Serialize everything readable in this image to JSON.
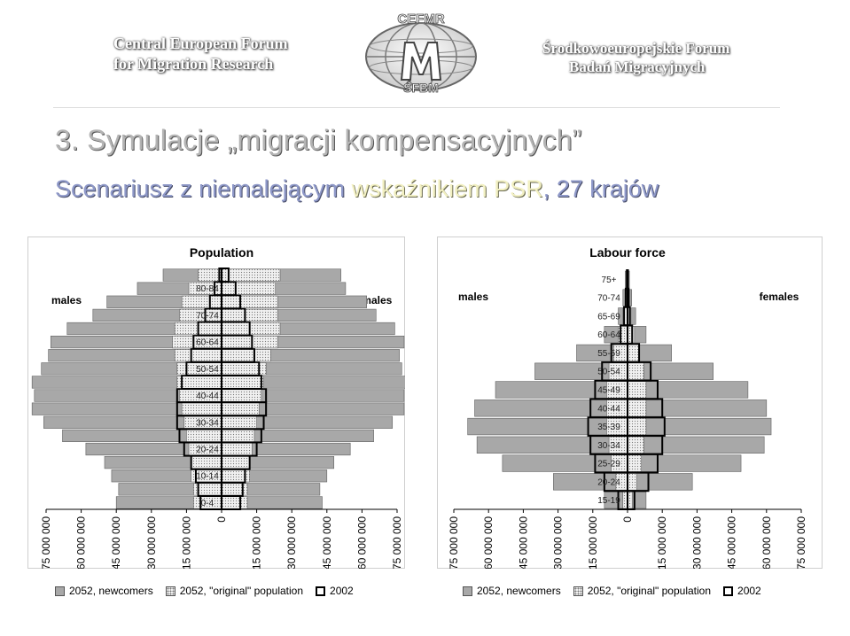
{
  "header": {
    "org_left_line1": "Central European Forum",
    "org_left_line2": "for Migration Research",
    "org_right_line1": "Środkowoeuropejskie Forum",
    "org_right_line2": "Badań Migracyjnych",
    "logo_top": "CEFMR",
    "logo_bottom": "ŚFBM"
  },
  "title": "3. Symulacje „migracji kompensacyjnych”",
  "subtitle": {
    "part1": "Scenariusz z niemalejącym ",
    "part2": "wskaźnikiem PSR",
    "part3": ", 27 krajów"
  },
  "colors": {
    "newcomers": "#a8a8a8",
    "original": "#f0f0f0",
    "y2002": "#000000",
    "title": "#b4b4b4",
    "subtitle": "#8e98c8",
    "highlight": "#f2f0c2"
  },
  "chart_data": [
    {
      "type": "bar",
      "orientation": "horizontal-pyramid",
      "title": "Population",
      "left_label": "males",
      "right_label": "females",
      "age_groups": [
        "0-4",
        "5-9",
        "10-14",
        "15-19",
        "20-24",
        "25-29",
        "30-34",
        "35-39",
        "40-44",
        "45-49",
        "50-54",
        "55-59",
        "60-64",
        "65-69",
        "70-74",
        "75-79",
        "80-84",
        "85+"
      ],
      "y_tick_labels": [
        "0-4",
        "10-14",
        "20-24",
        "30-34",
        "40-44",
        "50-54",
        "60-64",
        "70-74",
        "80-84"
      ],
      "x_tick_labels": [
        "75 000 000",
        "60 000 000",
        "45 000 000",
        "30 000 000",
        "15 000 000",
        "0",
        "15 000 000",
        "30 000 000",
        "45 000 000",
        "60 000 000",
        "75 000 000"
      ],
      "xlim": [
        -75000000,
        75000000
      ],
      "series": [
        {
          "name": "2052, newcomers",
          "males": [
            33,
            32,
            34,
            37,
            44,
            53,
            60,
            64,
            62,
            62,
            58,
            54,
            52,
            46,
            37,
            32,
            22,
            15
          ],
          "females": [
            32,
            31,
            33,
            36,
            42,
            51,
            58,
            62,
            61,
            61,
            58,
            55,
            54,
            49,
            42,
            38,
            30,
            26
          ]
        },
        {
          "name": "2052, \"original\" population",
          "males": [
            12,
            12,
            13,
            13,
            14,
            15,
            16,
            17,
            18,
            19,
            19,
            20,
            21,
            20,
            18,
            17,
            14,
            10
          ],
          "females": [
            11,
            11,
            12,
            12,
            13,
            14,
            15,
            16,
            17,
            18,
            19,
            21,
            24,
            25,
            24,
            24,
            23,
            25
          ]
        },
        {
          "name": "2002",
          "males": [
            9,
            10,
            11,
            13,
            16,
            18,
            19,
            19,
            19,
            17,
            15,
            13,
            12,
            10,
            7,
            5,
            3,
            1
          ],
          "females": [
            8,
            9,
            10,
            12,
            15,
            17,
            18,
            19,
            19,
            17,
            16,
            14,
            13,
            12,
            10,
            8,
            6,
            3
          ]
        }
      ],
      "values_unit": "millions",
      "legend_position": "bottom"
    },
    {
      "type": "bar",
      "orientation": "horizontal-pyramid",
      "title": "Labour force",
      "left_label": "males",
      "right_label": "females",
      "age_groups": [
        "15-19",
        "20-24",
        "25-29",
        "30-34",
        "35-39",
        "40-44",
        "45-49",
        "50-54",
        "55-59",
        "60-64",
        "65-69",
        "70-74",
        "75+"
      ],
      "y_tick_labels": [
        "15-19",
        "20-24",
        "25-29",
        "30-34",
        "35-39",
        "40-44",
        "45-49",
        "50-54",
        "55-59",
        "60-64",
        "65-69",
        "70-74",
        "75+"
      ],
      "x_tick_labels": [
        "75 000 000",
        "60 000 000",
        "45 000 000",
        "30 000 000",
        "15 000 000",
        "0",
        "15 000 000",
        "30 000 000",
        "45 000 000",
        "60 000 000",
        "75 000 000"
      ],
      "xlim": [
        -75000000,
        75000000
      ],
      "series": [
        {
          "name": "2052, newcomers",
          "males": [
            8,
            27,
            47,
            57,
            60,
            57,
            48,
            32,
            16,
            6,
            2,
            1,
            0.5
          ],
          "females": [
            6,
            24,
            43,
            52,
            54,
            52,
            44,
            30,
            14,
            5,
            2,
            1,
            0.5
          ]
        },
        {
          "name": "2052, \"original\" population",
          "males": [
            2,
            5,
            7,
            8,
            9,
            9,
            9,
            8,
            6,
            4,
            2,
            1,
            0.5
          ],
          "females": [
            2,
            4,
            6,
            7,
            8,
            8,
            8,
            7,
            5,
            3,
            1.5,
            0.8,
            0.3
          ]
        },
        {
          "name": "2002",
          "males": [
            4,
            10,
            14,
            16,
            17,
            16,
            14,
            11,
            7,
            3,
            1.5,
            0.8,
            0.3
          ],
          "females": [
            3,
            9,
            13,
            15,
            16,
            15,
            13,
            10,
            5,
            2,
            1,
            0.5,
            0.2
          ]
        }
      ],
      "values_unit": "millions",
      "legend_position": "bottom"
    }
  ]
}
